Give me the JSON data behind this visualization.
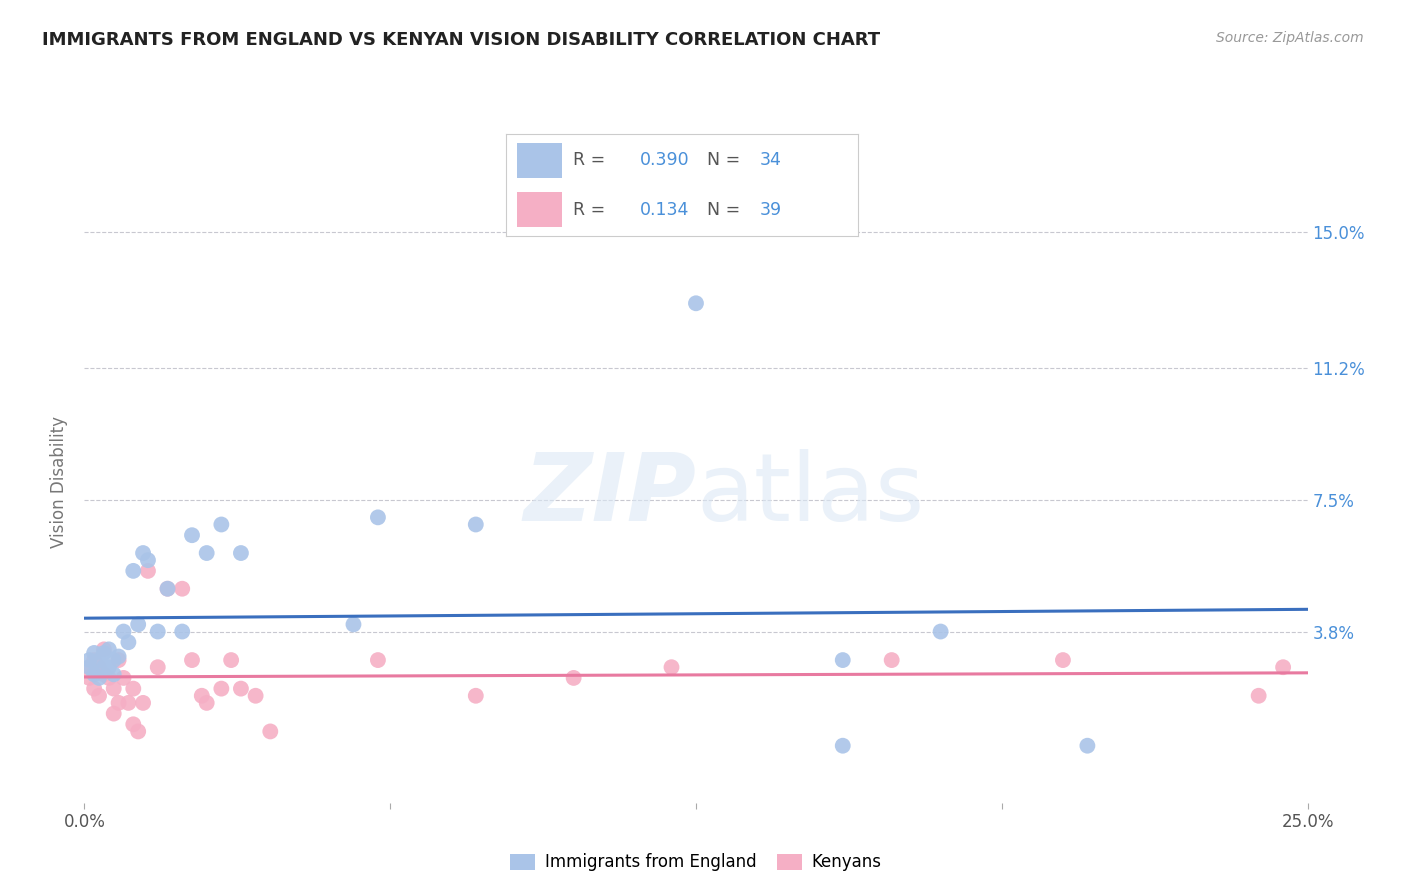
{
  "title": "IMMIGRANTS FROM ENGLAND VS KENYAN VISION DISABILITY CORRELATION CHART",
  "source": "Source: ZipAtlas.com",
  "ylabel": "Vision Disability",
  "watermark": "ZIPatlas",
  "xlim": [
    0.0,
    0.25
  ],
  "ylim": [
    -0.01,
    0.17
  ],
  "yticks": [
    0.0,
    0.038,
    0.075,
    0.112,
    0.15
  ],
  "ytick_labels": [
    "",
    "3.8%",
    "7.5%",
    "11.2%",
    "15.0%"
  ],
  "xticks": [
    0.0,
    0.0625,
    0.125,
    0.1875,
    0.25
  ],
  "xtick_labels": [
    "0.0%",
    "",
    "",
    "",
    "25.0%"
  ],
  "grid_color": "#c8c8d0",
  "background_color": "#ffffff",
  "england_color": "#aac4e8",
  "england_line_color": "#3a6fbe",
  "kenyan_color": "#f5afc5",
  "kenyan_line_color": "#e87aa0",
  "legend_R_england": "0.390",
  "legend_N_england": "34",
  "legend_R_kenyan": "0.134",
  "legend_N_kenyan": "39",
  "england_x": [
    0.001,
    0.001,
    0.002,
    0.002,
    0.003,
    0.003,
    0.004,
    0.004,
    0.005,
    0.005,
    0.006,
    0.006,
    0.007,
    0.008,
    0.009,
    0.01,
    0.011,
    0.012,
    0.013,
    0.015,
    0.017,
    0.02,
    0.022,
    0.025,
    0.028,
    0.032,
    0.055,
    0.06,
    0.08,
    0.125,
    0.155,
    0.175,
    0.155,
    0.205
  ],
  "england_y": [
    0.03,
    0.028,
    0.032,
    0.026,
    0.03,
    0.025,
    0.032,
    0.028,
    0.033,
    0.028,
    0.03,
    0.026,
    0.031,
    0.038,
    0.035,
    0.055,
    0.04,
    0.06,
    0.058,
    0.038,
    0.05,
    0.038,
    0.065,
    0.06,
    0.068,
    0.06,
    0.04,
    0.07,
    0.068,
    0.13,
    0.03,
    0.038,
    0.006,
    0.006
  ],
  "kenyan_x": [
    0.001,
    0.001,
    0.002,
    0.002,
    0.003,
    0.003,
    0.004,
    0.004,
    0.005,
    0.006,
    0.006,
    0.007,
    0.007,
    0.008,
    0.009,
    0.01,
    0.01,
    0.011,
    0.012,
    0.013,
    0.015,
    0.017,
    0.02,
    0.022,
    0.024,
    0.025,
    0.028,
    0.03,
    0.032,
    0.035,
    0.038,
    0.06,
    0.08,
    0.1,
    0.12,
    0.165,
    0.2,
    0.24,
    0.245
  ],
  "kenyan_y": [
    0.028,
    0.025,
    0.03,
    0.022,
    0.028,
    0.02,
    0.033,
    0.026,
    0.025,
    0.022,
    0.015,
    0.03,
    0.018,
    0.025,
    0.018,
    0.022,
    0.012,
    0.01,
    0.018,
    0.055,
    0.028,
    0.05,
    0.05,
    0.03,
    0.02,
    0.018,
    0.022,
    0.03,
    0.022,
    0.02,
    0.01,
    0.03,
    0.02,
    0.025,
    0.028,
    0.03,
    0.03,
    0.02,
    0.028
  ]
}
